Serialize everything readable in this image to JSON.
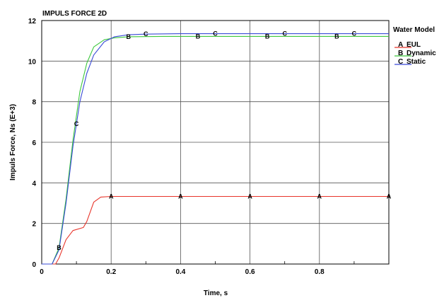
{
  "chart_data": {
    "type": "line",
    "title": "IMPULS FORCE 2D",
    "xlabel": "Time, s",
    "ylabel": "Impuls Force, Ns (E+3)",
    "xlim": [
      0,
      1.0
    ],
    "ylim": [
      0,
      12
    ],
    "x_ticks": [
      "0",
      "0.2",
      "0.4",
      "0.6",
      "0.8"
    ],
    "y_ticks": [
      "0",
      "2",
      "4",
      "6",
      "8",
      "10",
      "12"
    ],
    "grid": true,
    "legend": {
      "title": "Water Model",
      "placement": "right",
      "entries": [
        {
          "marker": "A",
          "label": "EUL",
          "color": "#e8352b"
        },
        {
          "marker": "B",
          "label": "Dynamic",
          "color": "#3cc83c"
        },
        {
          "marker": "C",
          "label": "Static",
          "color": "#3a4bd6"
        }
      ]
    },
    "series": [
      {
        "name": "EUL",
        "marker": "A",
        "color": "#e8352b",
        "x": [
          0,
          0.04,
          0.05,
          0.07,
          0.09,
          0.12,
          0.13,
          0.15,
          0.17,
          0.2,
          0.4,
          0.6,
          0.8,
          1.0
        ],
        "y": [
          0,
          0,
          0.3,
          1.2,
          1.65,
          1.8,
          2.1,
          3.05,
          3.3,
          3.33,
          3.33,
          3.33,
          3.33,
          3.33
        ],
        "marker_x": [
          0.2,
          0.4,
          0.6,
          0.8,
          1.0
        ]
      },
      {
        "name": "Dynamic",
        "marker": "B",
        "color": "#3cc83c",
        "x": [
          0,
          0.03,
          0.05,
          0.07,
          0.09,
          0.11,
          0.13,
          0.15,
          0.18,
          0.21,
          0.25,
          0.35,
          0.5,
          0.7,
          1.0
        ],
        "y": [
          0,
          0,
          0.8,
          3.2,
          6.1,
          8.5,
          9.9,
          10.7,
          11.05,
          11.15,
          11.2,
          11.22,
          11.22,
          11.22,
          11.22
        ],
        "marker_x": [
          0.05,
          0.25,
          0.45,
          0.65,
          0.85
        ]
      },
      {
        "name": "Static",
        "marker": "C",
        "color": "#3a4bd6",
        "x": [
          0,
          0.03,
          0.05,
          0.07,
          0.09,
          0.11,
          0.13,
          0.15,
          0.18,
          0.21,
          0.25,
          0.3,
          0.4,
          0.6,
          1.0
        ],
        "y": [
          0,
          0,
          0.7,
          3.0,
          5.8,
          8.0,
          9.4,
          10.3,
          10.95,
          11.2,
          11.3,
          11.33,
          11.35,
          11.35,
          11.35
        ],
        "marker_x": [
          0.1,
          0.3,
          0.5,
          0.7,
          0.9
        ]
      }
    ]
  }
}
